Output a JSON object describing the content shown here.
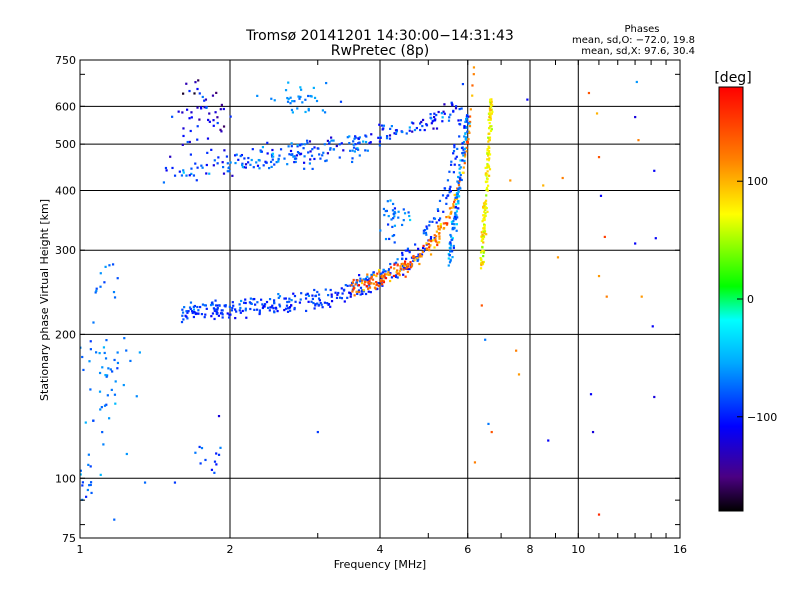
{
  "chart_data": {
    "type": "scatter",
    "title": "Tromsø 20141201 14:30:00−14:31:43",
    "subtitle": "RwPretec (8p)",
    "stats": {
      "heading": "Phases",
      "line1": "mean, sd,O: −72.0, 19.8",
      "line2": "mean, sd,X:  97.6, 30.4"
    },
    "xlabel": "Frequency [MHz]",
    "ylabel": "Stationary phase Virtual Height [km]",
    "x_scale": "log",
    "y_scale": "log",
    "xlim": [
      1,
      16
    ],
    "ylim": [
      75,
      750
    ],
    "grid": true,
    "x_ticks": [
      {
        "value": 1,
        "label": "1"
      },
      {
        "value": 2,
        "label": "2"
      },
      {
        "value": 4,
        "label": "4"
      },
      {
        "value": 6,
        "label": "6"
      },
      {
        "value": 8,
        "label": "8"
      },
      {
        "value": 10,
        "label": "10"
      },
      {
        "value": 16,
        "label": "16"
      }
    ],
    "y_ticks": [
      {
        "value": 75,
        "label": "75"
      },
      {
        "value": 100,
        "label": "100"
      },
      {
        "value": 200,
        "label": "200"
      },
      {
        "value": 300,
        "label": "300"
      },
      {
        "value": 400,
        "label": "400"
      },
      {
        "value": 500,
        "label": "500"
      },
      {
        "value": 600,
        "label": "600"
      },
      {
        "value": 750,
        "label": "750"
      }
    ],
    "colorbar": {
      "label": "[deg]",
      "min": -180,
      "max": 180,
      "ticks": [
        {
          "value": 100,
          "label": "100"
        },
        {
          "value": 0,
          "label": "0"
        },
        {
          "value": -100,
          "label": "−100"
        }
      ]
    },
    "traces": [
      {
        "desc": "O-mode F trace",
        "f_start": 1.6,
        "f_end": 6.0,
        "fc": 6.0,
        "h0": 215,
        "hk": 120,
        "jitter": 0.015,
        "phase": -95,
        "phase_sd": 10,
        "n": 220
      },
      {
        "desc": "O-mode F trace (echo)",
        "f_start": 1.6,
        "f_end": 5.9,
        "fc": 6.0,
        "h0": 222,
        "hk": 140,
        "jitter": 0.012,
        "phase": -85,
        "phase_sd": 12,
        "n": 160
      },
      {
        "desc": "X-mode F trace",
        "f_start": 3.5,
        "f_end": 6.25,
        "fc": 6.3,
        "h0": 225,
        "hk": 125,
        "jitter": 0.02,
        "phase": 125,
        "phase_sd": 25,
        "n": 200
      },
      {
        "desc": "Cusp near X critical",
        "f_start": 6.4,
        "f_end": 6.7,
        "h_start": 280,
        "h_end": 620,
        "phase": 75,
        "phase_sd": 15,
        "n": 160
      },
      {
        "desc": "Upper O trace near critical",
        "f_start": 5.5,
        "f_end": 6.0,
        "h_start": 280,
        "h_end": 580,
        "phase": -70,
        "phase_sd": 20,
        "n": 120
      },
      {
        "desc": "Multi-hop trace",
        "f_start": 1.5,
        "f_end": 5.7,
        "h_start": 440,
        "h_end": 590,
        "phase": -95,
        "phase_sd": 20,
        "n": 170
      },
      {
        "desc": "Multi-hop trace (lower)",
        "f_start": 1.6,
        "f_end": 3.8,
        "h_start": 445,
        "h_end": 500,
        "phase": -70,
        "phase_sd": 15,
        "n": 90
      }
    ],
    "clusters": [
      {
        "x": 1.12,
        "y": 150,
        "dx": 0.08,
        "dy": 30,
        "phase": -70,
        "phase_sd": 10,
        "n": 60
      },
      {
        "x": 1.02,
        "y": 97,
        "dx": 0.03,
        "dy": 3,
        "phase": -75,
        "phase_sd": 10,
        "n": 14
      },
      {
        "x": 1.75,
        "y": 580,
        "dx": 0.12,
        "dy": 50,
        "phase": -115,
        "phase_sd": 25,
        "n": 55
      },
      {
        "x": 2.8,
        "y": 620,
        "dx": 0.2,
        "dy": 20,
        "phase": -65,
        "phase_sd": 10,
        "n": 35
      },
      {
        "x": 1.15,
        "y": 260,
        "dx": 0.04,
        "dy": 12,
        "phase": -70,
        "phase_sd": 10,
        "n": 12
      },
      {
        "x": 1.8,
        "y": 110,
        "dx": 0.08,
        "dy": 5,
        "phase": -90,
        "phase_sd": 15,
        "n": 12
      },
      {
        "x": 4.3,
        "y": 350,
        "dx": 0.15,
        "dy": 25,
        "phase": -70,
        "phase_sd": 15,
        "n": 35
      }
    ],
    "scatter_points": [
      {
        "x": 7.3,
        "y": 420,
        "phase": 110
      },
      {
        "x": 7.5,
        "y": 185,
        "phase": 120
      },
      {
        "x": 7.6,
        "y": 165,
        "phase": 110
      },
      {
        "x": 7.9,
        "y": 620,
        "phase": -110
      },
      {
        "x": 8.5,
        "y": 410,
        "phase": 100
      },
      {
        "x": 8.7,
        "y": 120,
        "phase": -110
      },
      {
        "x": 9.1,
        "y": 290,
        "phase": 110
      },
      {
        "x": 9.3,
        "y": 425,
        "phase": 120
      },
      {
        "x": 10.5,
        "y": 640,
        "phase": 140
      },
      {
        "x": 10.6,
        "y": 150,
        "phase": -110
      },
      {
        "x": 10.9,
        "y": 580,
        "phase": 100
      },
      {
        "x": 11.0,
        "y": 470,
        "phase": 140
      },
      {
        "x": 11.1,
        "y": 390,
        "phase": -110
      },
      {
        "x": 11.3,
        "y": 320,
        "phase": 150
      },
      {
        "x": 11.0,
        "y": 265,
        "phase": 110
      },
      {
        "x": 11.4,
        "y": 240,
        "phase": 120
      },
      {
        "x": 11.0,
        "y": 84,
        "phase": 160
      },
      {
        "x": 10.7,
        "y": 125,
        "phase": -120
      },
      {
        "x": 13.1,
        "y": 675,
        "phase": -60
      },
      {
        "x": 13.0,
        "y": 570,
        "phase": -120
      },
      {
        "x": 13.2,
        "y": 510,
        "phase": 120
      },
      {
        "x": 13.0,
        "y": 310,
        "phase": -110
      },
      {
        "x": 13.4,
        "y": 240,
        "phase": 110
      },
      {
        "x": 14.2,
        "y": 440,
        "phase": -110
      },
      {
        "x": 14.3,
        "y": 318,
        "phase": -110
      },
      {
        "x": 14.1,
        "y": 208,
        "phase": -110
      },
      {
        "x": 14.2,
        "y": 148,
        "phase": -120
      },
      {
        "x": 6.4,
        "y": 230,
        "phase": 140
      },
      {
        "x": 6.5,
        "y": 195,
        "phase": -70
      },
      {
        "x": 6.6,
        "y": 130,
        "phase": -70
      },
      {
        "x": 6.7,
        "y": 125,
        "phase": 140
      },
      {
        "x": 6.2,
        "y": 108,
        "phase": 120
      },
      {
        "x": 3.0,
        "y": 125,
        "phase": -90
      },
      {
        "x": 1.9,
        "y": 135,
        "phase": -120
      },
      {
        "x": 1.55,
        "y": 98,
        "phase": -90
      },
      {
        "x": 1.35,
        "y": 98,
        "phase": -75
      }
    ]
  }
}
